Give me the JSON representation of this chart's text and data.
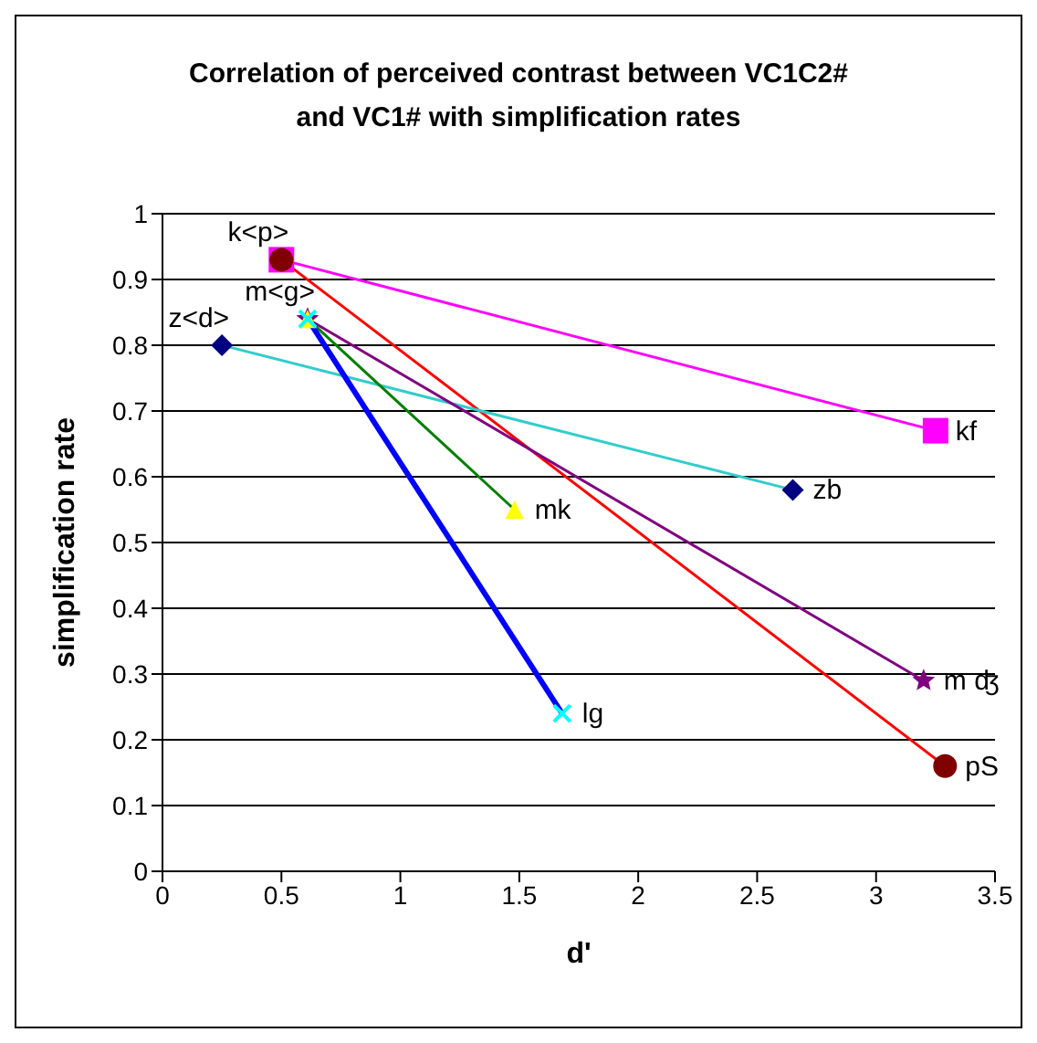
{
  "chart_data": {
    "type": "line",
    "title": "Correlation of perceived contrast between VC1C2#\nand VC1# with simplification rates",
    "xlabel": "d'",
    "ylabel": "simplification rate",
    "xlim": [
      0,
      3.5
    ],
    "xticks": [
      0,
      0.5,
      1,
      1.5,
      2,
      2.5,
      3,
      3.5
    ],
    "ylim": [
      0,
      1
    ],
    "yticks": [
      0,
      0.1,
      0.2,
      0.3,
      0.4,
      0.5,
      0.6,
      0.7,
      0.8,
      0.9,
      1
    ],
    "grid": "y",
    "legend": false,
    "series": [
      {
        "color": "#ff00ff",
        "marker": "square",
        "colors": [
          "#ff00ff",
          "#ff00ff"
        ],
        "x": [
          0.5,
          3.25
        ],
        "values": [
          0.93,
          0.67
        ]
      },
      {
        "color": "#ff0000",
        "marker": "circle",
        "colors": [
          "#800000",
          "#800000"
        ],
        "x": [
          0.5,
          3.29
        ],
        "values": [
          0.93,
          0.16
        ]
      },
      {
        "color": "#33cccc",
        "marker": "diamond",
        "colors": [
          "#000080",
          "#000080"
        ],
        "x": [
          0.25,
          2.65
        ],
        "values": [
          0.8,
          0.58
        ]
      },
      {
        "color": "#800080",
        "marker": "star",
        "colors": [
          "#800080",
          "#800080"
        ],
        "x": [
          0.61,
          3.2
        ],
        "values": [
          0.84,
          0.29
        ]
      },
      {
        "color": "#008000",
        "marker": "triangle",
        "colors": [
          "#ffff00",
          "#ffff00"
        ],
        "x": [
          0.61,
          1.48
        ],
        "values": [
          0.84,
          0.55
        ]
      },
      {
        "color": "#0000ff",
        "marker": "cross",
        "colors": [
          "#00ffff",
          "#00ffff"
        ],
        "x": [
          0.61,
          1.68
        ],
        "values": [
          0.84,
          0.24
        ]
      }
    ],
    "annotations": [
      {
        "text": "k<p>",
        "x": 0.5,
        "y": 0.93
      },
      {
        "text": "kf",
        "x": 3.25,
        "y": 0.67
      },
      {
        "text": "pS",
        "x": 3.29,
        "y": 0.16
      },
      {
        "text": "z<d>",
        "x": 0.25,
        "y": 0.8
      },
      {
        "text": "zb",
        "x": 2.65,
        "y": 0.58
      },
      {
        "text": "m<g>",
        "x": 0.61,
        "y": 0.84
      },
      {
        "text": "m ʤ",
        "x": 3.2,
        "y": 0.29
      },
      {
        "text": "mk",
        "x": 1.48,
        "y": 0.55
      },
      {
        "text": "lg",
        "x": 1.68,
        "y": 0.24
      }
    ]
  }
}
